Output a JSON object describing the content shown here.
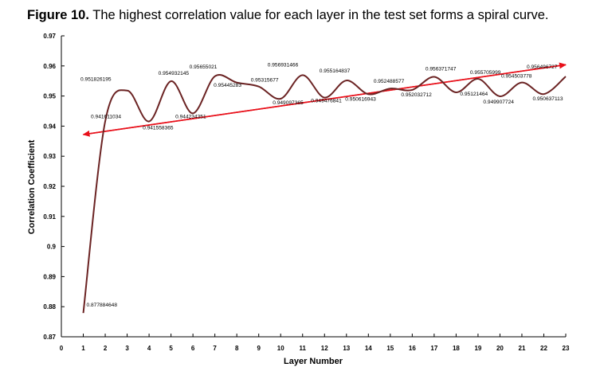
{
  "caption": {
    "label": "Figure 10.",
    "text": " The highest correlation value for each layer in the test set forms a spiral curve."
  },
  "chart_data": {
    "type": "line",
    "title": "",
    "xlabel": "Layer Number",
    "ylabel": "Correlation Coefficient",
    "xlim": [
      0,
      23
    ],
    "ylim": [
      0.87,
      0.97
    ],
    "x_ticks": [
      0,
      1,
      2,
      3,
      4,
      5,
      6,
      7,
      8,
      9,
      10,
      11,
      12,
      13,
      14,
      15,
      16,
      17,
      18,
      19,
      20,
      21,
      22,
      23
    ],
    "y_ticks": [
      0.87,
      0.88,
      0.89,
      0.9,
      0.91,
      0.92,
      0.93,
      0.94,
      0.95,
      0.96,
      0.97
    ],
    "line_color": "#6b2323",
    "highlight_color": "#e8101a",
    "series": [
      {
        "x": [
          1,
          2,
          3,
          4,
          5,
          6,
          7,
          8,
          9,
          10,
          11,
          12,
          13,
          14,
          15,
          16,
          17,
          18,
          19,
          20,
          21,
          22,
          23
        ],
        "values": [
          0.877884648,
          0.941611034,
          0.951826195,
          0.941558365,
          0.954932145,
          0.944234351,
          0.95655021,
          0.95445283,
          0.95315677,
          0.949097365,
          0.956931466,
          0.949476841,
          0.955164837,
          0.950616943,
          0.952488577,
          0.952032712,
          0.956371747,
          0.95121464,
          0.955705999,
          0.949907724,
          0.954503778,
          0.950637113,
          0.956496727
        ],
        "labels": [
          "0.877884648",
          "0.941611034",
          "0.951826195",
          "0.941558365",
          "0.954932145",
          "0.944234351",
          "0.95655021",
          "0.95445283",
          "0.95315677",
          "0.949097365",
          "0.956931466",
          "0.949476841",
          "0.955164837",
          "0.950616943",
          "0.952488577",
          "0.952032712",
          "0.956371747",
          "0.95121464",
          "0.955705999",
          "0.949907724",
          "0.954503778",
          "0.950637113",
          "0.956496727"
        ],
        "highlight_index": 10
      }
    ],
    "annotations": [
      {
        "type": "arrow",
        "from": [
          23,
          0.9604
        ],
        "to": [
          1,
          0.9372
        ],
        "color": "#e8101a"
      },
      {
        "type": "arrow",
        "from": [
          1,
          0.9372
        ],
        "to": [
          23,
          0.9604
        ],
        "color": "#e8101a"
      }
    ]
  }
}
